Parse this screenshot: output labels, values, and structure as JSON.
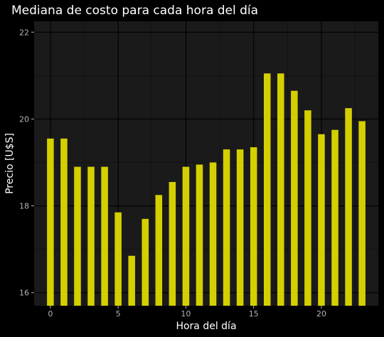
{
  "chart_data": {
    "type": "bar",
    "title": "Mediana de costo para cada hora del día",
    "xlabel": "Hora del día",
    "ylabel": "Precio [U$S]",
    "x": [
      0,
      1,
      2,
      3,
      4,
      5,
      6,
      7,
      8,
      9,
      10,
      11,
      12,
      13,
      14,
      15,
      16,
      17,
      18,
      19,
      20,
      21,
      22,
      23
    ],
    "values": [
      19.55,
      19.55,
      18.9,
      18.9,
      18.9,
      17.85,
      16.85,
      17.7,
      18.25,
      18.55,
      18.9,
      18.95,
      19.0,
      19.3,
      19.3,
      19.35,
      21.05,
      21.05,
      20.65,
      20.2,
      19.65,
      19.75,
      20.25,
      19.95
    ],
    "xticks": [
      0,
      5,
      10,
      15,
      20
    ],
    "yticks": [
      16,
      18,
      20,
      22
    ],
    "xlim": [
      -1.2,
      24.2
    ],
    "ylim": [
      15.7,
      22.25
    ],
    "grid": true,
    "colors": {
      "bar": "#d4d000",
      "panel": "#1a1a1a",
      "background": "#000000",
      "grid": "#000000",
      "text": "#ffffff",
      "tick_text": "#b3b3b3"
    }
  }
}
